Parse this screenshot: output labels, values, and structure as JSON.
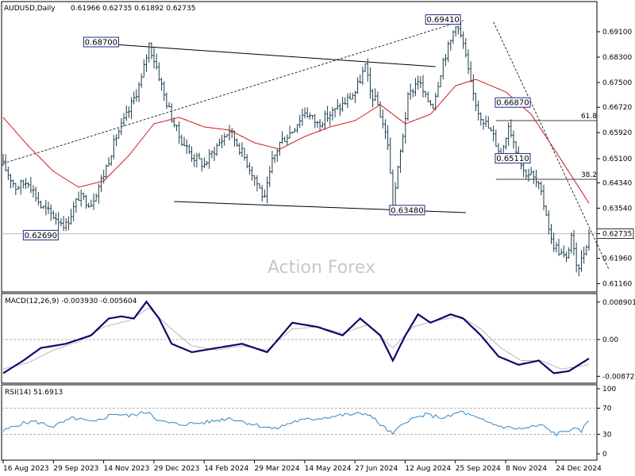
{
  "header": {
    "symbol": "AUDUSD,Daily",
    "ohlc": "0.61966 0.62735 0.61892 0.62735"
  },
  "watermark": "Action Forex",
  "colors": {
    "price": "#1b3d4a",
    "ma": "#d0181e",
    "trend": "#000000",
    "macd": "#0a0a6e",
    "signal": "#b8b8b8",
    "rsi": "#2e86c9",
    "label_box": "#1a2a8a"
  },
  "chart_data": [
    {
      "type": "candlestick",
      "title": "AUDUSD,Daily",
      "y_ticks": [
        "0.69100",
        "0.68300",
        "0.67500",
        "0.66720",
        "0.65920",
        "0.65100",
        "0.64340",
        "0.63540",
        "0.62735",
        "0.61960",
        "0.61160"
      ],
      "ylim": [
        0.61,
        0.697
      ],
      "x_ticks": [
        "16 Aug 2023",
        "29 Sep 2023",
        "14 Nov 2023",
        "29 Dec 2023",
        "14 Feb 2024",
        "29 Mar 2024",
        "14 May 2024",
        "27 Jun 2024",
        "12 Aug 2024",
        "25 Sep 2024",
        "8 Nov 2024",
        "24 Dec 2024"
      ],
      "last_price": "0.62735",
      "close_path": [
        [
          0,
          0.649
        ],
        [
          5,
          0.642
        ],
        [
          10,
          0.644
        ],
        [
          15,
          0.636
        ],
        [
          20,
          0.633
        ],
        [
          25,
          0.63
        ],
        [
          30,
          0.639
        ],
        [
          35,
          0.637
        ],
        [
          40,
          0.646
        ],
        [
          45,
          0.658
        ],
        [
          50,
          0.666
        ],
        [
          55,
          0.676
        ],
        [
          58,
          0.687
        ],
        [
          61,
          0.68
        ],
        [
          64,
          0.671
        ],
        [
          67,
          0.664
        ],
        [
          70,
          0.658
        ],
        [
          75,
          0.652
        ],
        [
          80,
          0.649
        ],
        [
          85,
          0.655
        ],
        [
          90,
          0.66
        ],
        [
          95,
          0.653
        ],
        [
          100,
          0.645
        ],
        [
          104,
          0.638
        ],
        [
          107,
          0.65
        ],
        [
          110,
          0.656
        ],
        [
          115,
          0.66
        ],
        [
          120,
          0.666
        ],
        [
          125,
          0.662
        ],
        [
          130,
          0.665
        ],
        [
          135,
          0.668
        ],
        [
          140,
          0.672
        ],
        [
          144,
          0.68
        ],
        [
          146,
          0.672
        ],
        [
          149,
          0.668
        ],
        [
          153,
          0.656
        ],
        [
          155,
          0.636
        ],
        [
          158,
          0.653
        ],
        [
          161,
          0.67
        ],
        [
          165,
          0.676
        ],
        [
          168,
          0.67
        ],
        [
          171,
          0.668
        ],
        [
          175,
          0.682
        ],
        [
          178,
          0.688
        ],
        [
          180,
          0.694
        ],
        [
          183,
          0.687
        ],
        [
          186,
          0.674
        ],
        [
          189,
          0.666
        ],
        [
          192,
          0.662
        ],
        [
          195,
          0.658
        ],
        [
          198,
          0.652
        ],
        [
          201,
          0.662
        ],
        [
          204,
          0.654
        ],
        [
          207,
          0.647
        ],
        [
          210,
          0.646
        ],
        [
          213,
          0.642
        ],
        [
          216,
          0.634
        ],
        [
          218,
          0.625
        ],
        [
          221,
          0.622
        ],
        [
          224,
          0.619
        ],
        [
          226,
          0.627
        ],
        [
          228,
          0.616
        ],
        [
          230,
          0.619
        ],
        [
          233,
          0.6273
        ]
      ],
      "ma_path": [
        [
          0,
          0.664
        ],
        [
          10,
          0.655
        ],
        [
          20,
          0.647
        ],
        [
          30,
          0.642
        ],
        [
          40,
          0.644
        ],
        [
          50,
          0.652
        ],
        [
          60,
          0.662
        ],
        [
          70,
          0.664
        ],
        [
          80,
          0.661
        ],
        [
          90,
          0.66
        ],
        [
          100,
          0.656
        ],
        [
          110,
          0.654
        ],
        [
          120,
          0.658
        ],
        [
          130,
          0.661
        ],
        [
          140,
          0.663
        ],
        [
          150,
          0.668
        ],
        [
          160,
          0.662
        ],
        [
          170,
          0.665
        ],
        [
          180,
          0.674
        ],
        [
          188,
          0.676
        ],
        [
          200,
          0.672
        ],
        [
          210,
          0.665
        ],
        [
          220,
          0.653
        ],
        [
          233,
          0.637
        ]
      ],
      "annotations": [
        {
          "label": "0.68700",
          "bar": 44,
          "price": 0.687,
          "side": "left"
        },
        {
          "label": "0.69410",
          "bar": 180,
          "price": 0.6941,
          "side": "left"
        },
        {
          "label": "0.66870",
          "bar": 197,
          "price": 0.6687,
          "side": "right"
        },
        {
          "label": "0.65110",
          "bar": 197,
          "price": 0.6511,
          "side": "right"
        },
        {
          "label": "0.63480",
          "bar": 155,
          "price": 0.6348,
          "side": "right"
        },
        {
          "label": "0.62690",
          "bar": 20,
          "price": 0.6269,
          "side": "left"
        }
      ],
      "fib_levels": [
        {
          "label": "61.8",
          "price": 0.663
        },
        {
          "label": "38.2",
          "price": 0.6445
        }
      ]
    },
    {
      "type": "line",
      "title": "MACD(12,26,9) -0.003930 -0.005604",
      "y_ticks": [
        "0.008901",
        "0.00",
        "-0.008729"
      ],
      "ylim": [
        -0.0098,
        0.0098
      ],
      "macd_path": [
        [
          0,
          -0.008
        ],
        [
          8,
          -0.005
        ],
        [
          15,
          -0.002
        ],
        [
          25,
          -0.001
        ],
        [
          35,
          0.001
        ],
        [
          42,
          0.005
        ],
        [
          47,
          0.0055
        ],
        [
          52,
          0.005
        ],
        [
          57,
          0.009
        ],
        [
          62,
          0.005
        ],
        [
          67,
          -0.001
        ],
        [
          75,
          -0.003
        ],
        [
          85,
          -0.002
        ],
        [
          95,
          -0.001
        ],
        [
          105,
          -0.003
        ],
        [
          115,
          0.004
        ],
        [
          125,
          0.003
        ],
        [
          135,
          0.001
        ],
        [
          142,
          0.005
        ],
        [
          150,
          0.001
        ],
        [
          155,
          -0.005
        ],
        [
          160,
          0.001
        ],
        [
          165,
          0.006
        ],
        [
          170,
          0.004
        ],
        [
          178,
          0.006
        ],
        [
          183,
          0.005
        ],
        [
          190,
          0.001
        ],
        [
          197,
          -0.004
        ],
        [
          205,
          -0.006
        ],
        [
          213,
          -0.005
        ],
        [
          219,
          -0.008
        ],
        [
          225,
          -0.0075
        ],
        [
          233,
          -0.0045
        ]
      ],
      "signal_path": [
        [
          0,
          -0.007
        ],
        [
          10,
          -0.0055
        ],
        [
          20,
          -0.0025
        ],
        [
          30,
          -0.0005
        ],
        [
          40,
          0.003
        ],
        [
          50,
          0.0045
        ],
        [
          58,
          0.0075
        ],
        [
          66,
          0.003
        ],
        [
          75,
          -0.0015
        ],
        [
          85,
          -0.0025
        ],
        [
          95,
          -0.0015
        ],
        [
          105,
          -0.0025
        ],
        [
          115,
          0.0025
        ],
        [
          125,
          0.003
        ],
        [
          135,
          0.0015
        ],
        [
          145,
          0.0035
        ],
        [
          155,
          -0.002
        ],
        [
          163,
          0.003
        ],
        [
          172,
          0.0045
        ],
        [
          182,
          0.0055
        ],
        [
          190,
          0.0025
        ],
        [
          198,
          -0.002
        ],
        [
          206,
          -0.005
        ],
        [
          214,
          -0.005
        ],
        [
          222,
          -0.007
        ],
        [
          233,
          -0.006
        ]
      ]
    },
    {
      "type": "line",
      "title": "RSI(14) 51.6913",
      "y_ticks": [
        "100",
        "70",
        "30",
        "0"
      ],
      "ylim": [
        0,
        100
      ],
      "levels": [
        70,
        30
      ],
      "rsi_path": [
        [
          0,
          35
        ],
        [
          6,
          45
        ],
        [
          12,
          50
        ],
        [
          20,
          42
        ],
        [
          28,
          55
        ],
        [
          36,
          48
        ],
        [
          44,
          62
        ],
        [
          50,
          58
        ],
        [
          58,
          65
        ],
        [
          62,
          50
        ],
        [
          70,
          45
        ],
        [
          80,
          48
        ],
        [
          90,
          55
        ],
        [
          100,
          45
        ],
        [
          108,
          38
        ],
        [
          116,
          50
        ],
        [
          126,
          55
        ],
        [
          136,
          60
        ],
        [
          145,
          62
        ],
        [
          150,
          45
        ],
        [
          155,
          30
        ],
        [
          160,
          50
        ],
        [
          168,
          60
        ],
        [
          176,
          55
        ],
        [
          182,
          65
        ],
        [
          190,
          52
        ],
        [
          198,
          42
        ],
        [
          206,
          38
        ],
        [
          214,
          44
        ],
        [
          220,
          30
        ],
        [
          226,
          38
        ],
        [
          230,
          35
        ],
        [
          233,
          52
        ]
      ]
    }
  ]
}
